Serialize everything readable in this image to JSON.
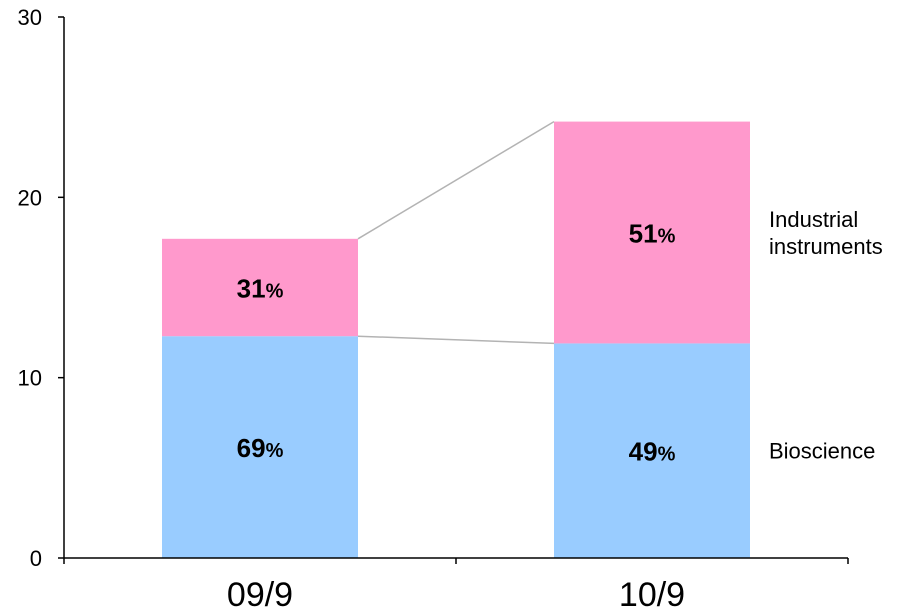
{
  "chart_data": {
    "type": "bar",
    "stacked": true,
    "categories": [
      "09/9",
      "10/9"
    ],
    "series": [
      {
        "name": "Bioscience",
        "values": [
          12.3,
          11.9
        ],
        "share_labels": [
          "69",
          "49"
        ],
        "color": "#99ccff"
      },
      {
        "name": "Industrial instruments",
        "values": [
          5.4,
          12.3
        ],
        "share_labels": [
          "31",
          "51"
        ],
        "color": "#ff99cc"
      }
    ],
    "percent_suffix": "%",
    "legend_lines": [
      {
        "series": 1,
        "lines": [
          "Industrial",
          "instruments"
        ]
      },
      {
        "series": 0,
        "lines": [
          "Bioscience"
        ]
      }
    ],
    "ylim": [
      0,
      30
    ],
    "yticks": [
      "0",
      "10",
      "20",
      "30"
    ],
    "title": "",
    "xlabel": "",
    "ylabel": "",
    "grid": false,
    "connector_color": "#b3b3b3"
  }
}
